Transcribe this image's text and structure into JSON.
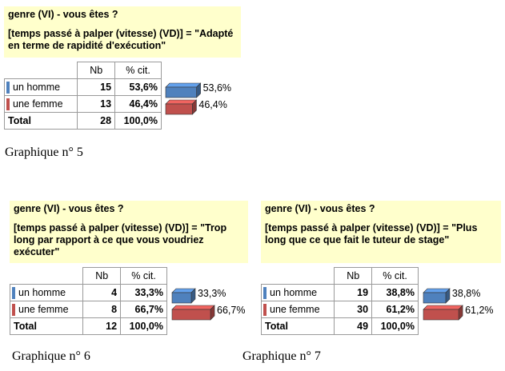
{
  "colors": {
    "homme": "#4f81bd",
    "femme": "#c0504d"
  },
  "chart_data": [
    {
      "type": "bar",
      "question": "genre (VI) - vous êtes ?",
      "variable": "[temps passé à palper (vitesse) (VD)] = \"Adapté en terme de rapidité d'exécution\"",
      "columns": [
        "Nb",
        "% cit."
      ],
      "categories": [
        "un homme",
        "une femme"
      ],
      "counts": [
        15,
        13
      ],
      "percent_labels": [
        "53,6%",
        "46,4%"
      ],
      "values": [
        53.6,
        46.4
      ],
      "bar_labels": [
        "53,6%",
        "46,4%"
      ],
      "total_label": "Total",
      "total_count": 28,
      "total_percent": "100,0%",
      "caption": "Graphique n° 5"
    },
    {
      "type": "bar",
      "question": "genre (VI) - vous êtes ?",
      "variable": "[temps passé à palper (vitesse) (VD)] = \"Trop long par rapport à ce que vous voudriez exécuter\"",
      "columns": [
        "Nb",
        "% cit."
      ],
      "categories": [
        "un homme",
        "une femme"
      ],
      "counts": [
        4,
        8
      ],
      "percent_labels": [
        "33,3%",
        "66,7%"
      ],
      "values": [
        33.3,
        66.7
      ],
      "bar_labels": [
        "33,3%",
        "66,7%"
      ],
      "total_label": "Total",
      "total_count": 12,
      "total_percent": "100,0%",
      "caption": "Graphique n° 6"
    },
    {
      "type": "bar",
      "question": "genre (VI) - vous êtes ?",
      "variable": "[temps passé à palper (vitesse) (VD)] = \"Plus long que ce que fait le tuteur de stage\"",
      "columns": [
        "Nb",
        "% cit."
      ],
      "categories": [
        "un homme",
        "une femme"
      ],
      "counts": [
        19,
        30
      ],
      "percent_labels": [
        "38,8%",
        "61,2%"
      ],
      "values": [
        38.8,
        61.2
      ],
      "bar_labels": [
        "38,8%",
        "61,2%"
      ],
      "total_label": "Total",
      "total_count": 49,
      "total_percent": "100,0%",
      "caption": "Graphique n° 7"
    }
  ]
}
